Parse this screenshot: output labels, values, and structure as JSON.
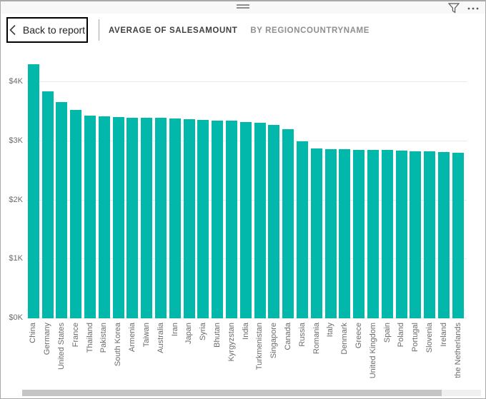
{
  "window": {
    "icons": [
      "drag-handle",
      "filter-icon",
      "more-options-icon"
    ]
  },
  "header": {
    "back_button": {
      "label": "Back to report",
      "icon": "chevron-left-icon"
    },
    "title": "AVERAGE OF SALESAMOUNT",
    "subtitle": "BY REGIONCOUNTRYNAME"
  },
  "chart_data": {
    "type": "bar",
    "title": "Average of SalesAmount by RegionCountryName",
    "xlabel": "",
    "ylabel": "",
    "value_unit": "USD",
    "bar_color": "#01B8AA",
    "grid": true,
    "legend": false,
    "ylim": [
      0,
      4300
    ],
    "y_ticks": [
      "$0K",
      "$1K",
      "$2K",
      "$3K",
      "$4K"
    ],
    "y_tick_values": [
      0,
      1000,
      2000,
      3000,
      4000
    ],
    "categories": [
      "China",
      "Germany",
      "United States",
      "France",
      "Thailand",
      "Pakistan",
      "South Korea",
      "Armenia",
      "Taiwan",
      "Australia",
      "Iran",
      "Japan",
      "Syria",
      "Bhutan",
      "Kyrgyzstan",
      "India",
      "Turkmenistan",
      "Singapore",
      "Canada",
      "Russia",
      "Romania",
      "Italy",
      "Denmark",
      "Greece",
      "United Kingdom",
      "Spain",
      "Poland",
      "Portugal",
      "Slovenia",
      "Ireland",
      "the Netherlands"
    ],
    "values": [
      4300,
      3840,
      3660,
      3530,
      3430,
      3420,
      3405,
      3400,
      3400,
      3395,
      3390,
      3380,
      3365,
      3355,
      3345,
      3330,
      3315,
      3280,
      3210,
      3000,
      2880,
      2870,
      2865,
      2860,
      2855,
      2850,
      2845,
      2835,
      2830,
      2820,
      2810
    ]
  }
}
